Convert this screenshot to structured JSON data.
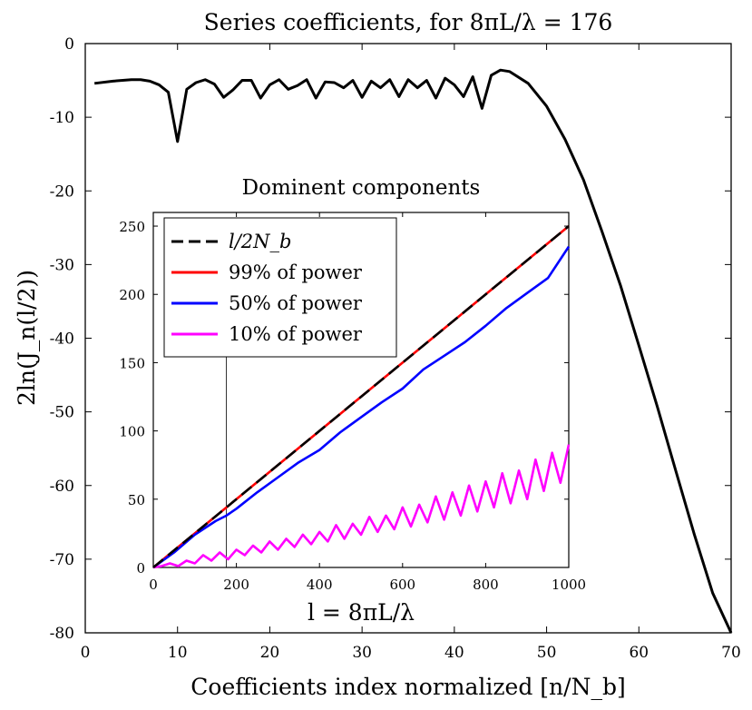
{
  "chart_data": [
    {
      "type": "line",
      "title": "Series coefficients, for 8πL/λ = 176",
      "xlabel": "Coefficients index normalized [n/N_b]",
      "ylabel": "2ln(J_n(l/2))",
      "xlim": [
        0,
        70
      ],
      "ylim": [
        -80,
        0
      ],
      "xticks": [
        "0",
        "10",
        "20",
        "30",
        "40",
        "50",
        "60",
        "70"
      ],
      "yticks": [
        "0",
        "-10",
        "-20",
        "-30",
        "-40",
        "-50",
        "-60",
        "-70",
        "-80"
      ],
      "series": [
        {
          "name": "2ln(J_n(l/2))",
          "color": "#000000",
          "x": [
            1,
            3,
            5,
            6,
            7,
            8,
            9,
            10,
            11,
            12,
            13,
            14,
            15,
            16,
            17,
            18,
            19,
            20,
            21,
            22,
            23,
            24,
            25,
            26,
            27,
            28,
            29,
            30,
            31,
            32,
            33,
            34,
            35,
            36,
            37,
            38,
            39,
            40,
            41,
            42,
            43,
            44,
            45,
            46,
            48,
            50,
            52,
            54,
            56,
            58,
            60,
            62,
            64,
            66,
            68,
            70
          ],
          "y": [
            -5.4,
            -5.1,
            -4.9,
            -4.9,
            -5.1,
            -5.6,
            -6.6,
            -13.3,
            -6.2,
            -5.3,
            -4.9,
            -5.5,
            -7.3,
            -6.3,
            -5.0,
            -5.0,
            -7.4,
            -5.6,
            -4.9,
            -6.2,
            -5.7,
            -4.9,
            -7.4,
            -5.2,
            -5.3,
            -6.0,
            -5.0,
            -7.3,
            -5.1,
            -6.0,
            -4.9,
            -7.2,
            -4.9,
            -6.0,
            -5.0,
            -7.4,
            -4.7,
            -5.6,
            -7.2,
            -4.5,
            -8.8,
            -4.3,
            -3.6,
            -3.8,
            -5.4,
            -8.5,
            -13.0,
            -18.5,
            -25.5,
            -32.8,
            -41.0,
            -49.3,
            -58.0,
            -66.6,
            -74.6,
            -80.0
          ]
        }
      ]
    },
    {
      "type": "line",
      "title": "Dominent components",
      "xlabel": "l = 8πL/λ",
      "ylabel": "",
      "xlim": [
        0,
        1000
      ],
      "ylim": [
        0,
        260
      ],
      "xticks": [
        "0",
        "200",
        "400",
        "600",
        "800",
        "1000"
      ],
      "yticks": [
        "0",
        "50",
        "100",
        "150",
        "200",
        "250"
      ],
      "legend_position": "top-left",
      "reference_line_x": 176,
      "series": [
        {
          "name": "l/2N_b",
          "style": "dashed",
          "color": "#000000",
          "x": [
            0,
            1000
          ],
          "y": [
            0,
            250
          ]
        },
        {
          "name": "99% of power",
          "color": "#ff0000",
          "x": [
            0,
            1000
          ],
          "y": [
            0,
            250
          ]
        },
        {
          "name": "50% of power",
          "color": "#0000ff",
          "x": [
            0,
            50,
            100,
            150,
            176,
            200,
            250,
            300,
            350,
            400,
            450,
            500,
            550,
            600,
            650,
            700,
            750,
            800,
            850,
            900,
            950,
            1000
          ],
          "y": [
            0,
            11,
            24,
            34,
            38,
            43,
            55,
            66,
            77,
            86,
            99,
            110,
            121,
            131,
            145,
            155,
            165,
            177,
            190,
            201,
            212,
            235
          ]
        },
        {
          "name": "10% of power",
          "color": "#ff00ff",
          "x": [
            0,
            20,
            40,
            60,
            80,
            100,
            120,
            140,
            160,
            180,
            200,
            220,
            240,
            260,
            280,
            300,
            320,
            340,
            360,
            380,
            400,
            420,
            440,
            460,
            480,
            500,
            520,
            540,
            560,
            580,
            600,
            620,
            640,
            660,
            680,
            700,
            720,
            740,
            760,
            780,
            800,
            820,
            840,
            860,
            880,
            900,
            920,
            940,
            960,
            980,
            1000
          ],
          "y": [
            0,
            1,
            3,
            1,
            5,
            3,
            9,
            5,
            11,
            6,
            13,
            9,
            16,
            11,
            19,
            13,
            21,
            15,
            24,
            17,
            26,
            19,
            31,
            21,
            32,
            24,
            37,
            26,
            38,
            28,
            44,
            30,
            46,
            33,
            52,
            35,
            55,
            38,
            60,
            41,
            63,
            44,
            69,
            47,
            71,
            50,
            79,
            56,
            84,
            62,
            90
          ]
        }
      ]
    }
  ]
}
